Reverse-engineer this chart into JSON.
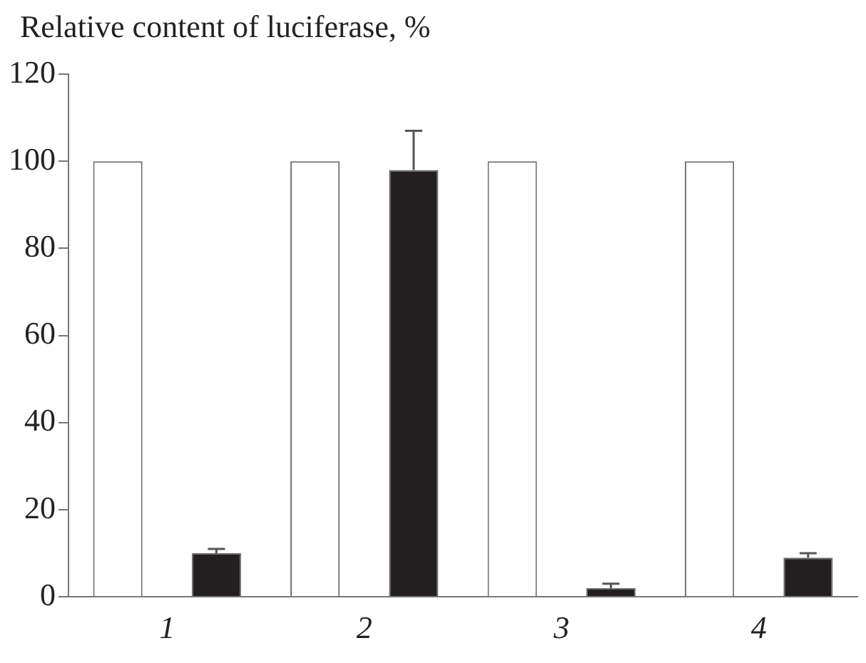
{
  "chart_data": {
    "type": "bar",
    "ylabel": "Relative content of luciferase, %",
    "categories": [
      "1",
      "2",
      "3",
      "4"
    ],
    "series": [
      {
        "color": "#ffffff",
        "values": [
          100,
          100,
          100,
          100
        ]
      },
      {
        "color": "#231f20",
        "values": [
          10,
          98,
          2,
          9
        ],
        "errors": [
          [
            10,
            11
          ],
          [
            98,
            107
          ],
          [
            2,
            3
          ],
          [
            9,
            10
          ]
        ]
      }
    ],
    "ylim": [
      0,
      120
    ],
    "yticks": [
      0,
      20,
      40,
      60,
      80,
      100,
      120
    ],
    "grid": false,
    "legend": false
  }
}
